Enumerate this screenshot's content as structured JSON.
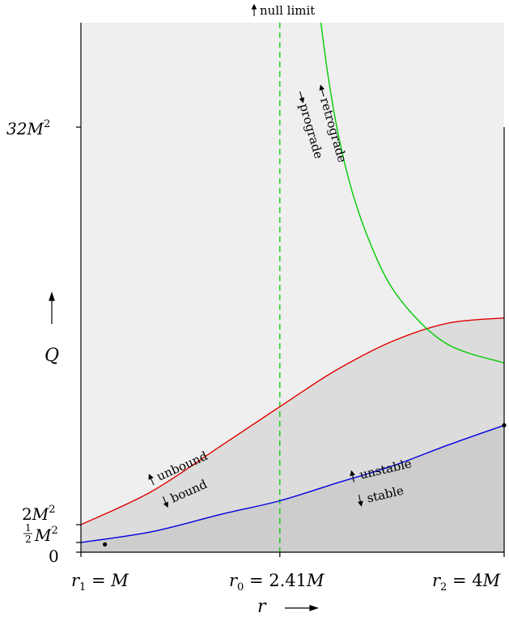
{
  "chart_data": {
    "type": "line",
    "x_axis": {
      "label": "r",
      "ticks": [
        {
          "value": 1,
          "label_lhs": "r",
          "label_sub": "1",
          "label_rhs": "= M"
        },
        {
          "value": 2.41,
          "label_lhs": "r",
          "label_sub": "0",
          "label_rhs": "= 2.41M"
        },
        {
          "value": 4,
          "label_lhs": "r",
          "label_sub": "2",
          "label_rhs": "= 4M"
        }
      ],
      "range": [
        1,
        4
      ]
    },
    "y_axis": {
      "label": "Q",
      "ticks": [
        {
          "value": 0,
          "label": "0"
        },
        {
          "value": 0.5,
          "label": "½M²"
        },
        {
          "value": 2,
          "label": "2M²"
        },
        {
          "value": 32,
          "label": "32M²"
        }
      ]
    },
    "series": [
      {
        "name": "unbound/bound boundary",
        "color": "#e00000",
        "x": [
          1.0,
          1.5,
          2.0,
          2.41,
          2.8,
          3.2,
          3.6,
          4.0
        ],
        "y": [
          2.0,
          4.5,
          8.0,
          10.9,
          13.6,
          15.8,
          17.2,
          17.6
        ]
      },
      {
        "name": "stable/unstable boundary",
        "color": "#0000e0",
        "x": [
          1.0,
          1.5,
          2.0,
          2.41,
          2.8,
          3.2,
          3.6,
          4.0
        ],
        "y": [
          0.5,
          1.4,
          2.8,
          3.8,
          5.1,
          6.4,
          8.0,
          9.5
        ]
      },
      {
        "name": "retrograde/prograde boundary",
        "color": "#00cc00",
        "x": [
          2.6,
          2.75,
          2.9,
          3.1,
          3.3,
          3.6,
          4.0
        ],
        "y": [
          49.0,
          36.0,
          28.0,
          22.0,
          18.5,
          15.6,
          14.2
        ]
      }
    ],
    "vertical_lines": [
      {
        "x": 2.41,
        "color": "#00cc00",
        "style": "dashed"
      }
    ],
    "markers": [
      {
        "x": 1.17,
        "y": 0.4
      },
      {
        "x": 4.0,
        "y": 9.5
      }
    ],
    "annotations": {
      "null_limit": "null limit",
      "retrograde": "retrograde",
      "prograde": "prograde",
      "unbound": "unbound",
      "bound": "bound",
      "unstable": "unstable",
      "stable": "stable"
    },
    "region_colors": {
      "upper": "#efefef",
      "middle": "#dcdcdc",
      "lower": "#cdcdcd"
    }
  }
}
